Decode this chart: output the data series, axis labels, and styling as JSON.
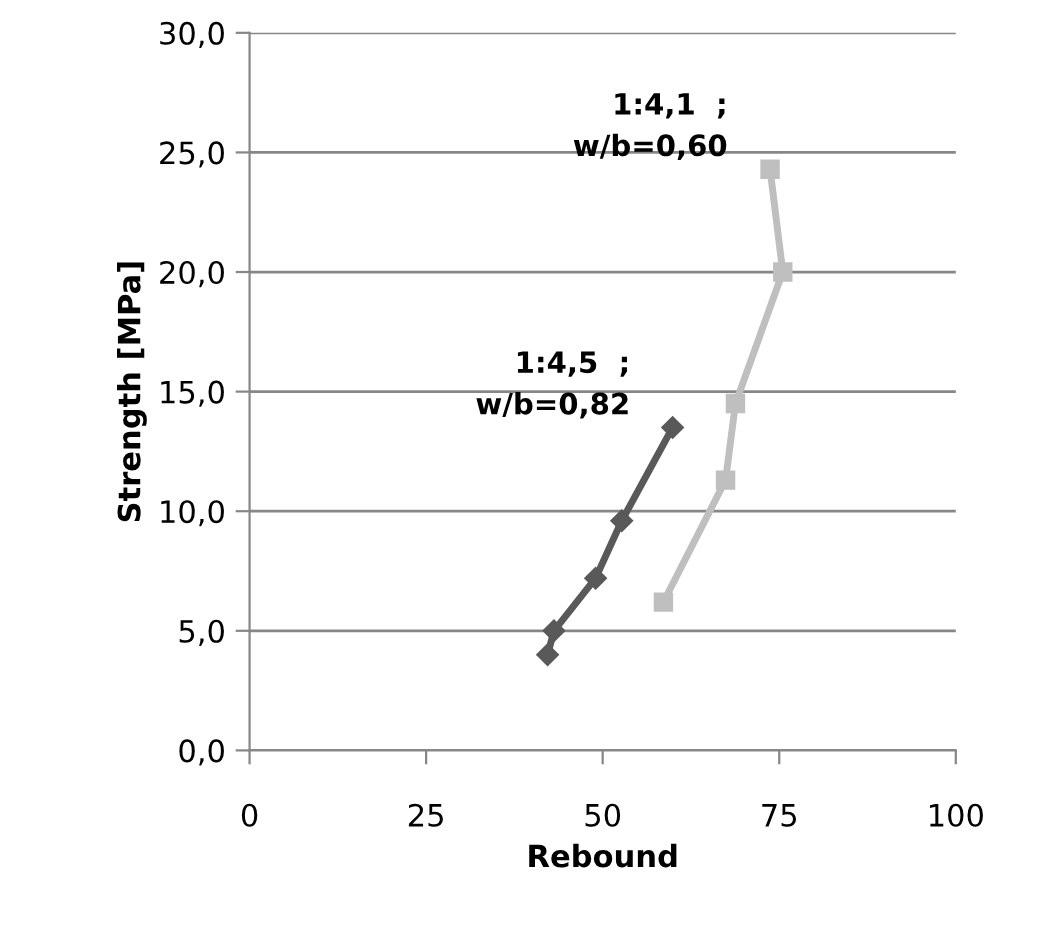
{
  "chart_data": {
    "type": "line",
    "xlabel": "Rebound",
    "ylabel": "Strength [MPa]",
    "xlim": [
      0,
      100
    ],
    "xticks": [
      0,
      25,
      50,
      75,
      100
    ],
    "ylim": [
      0,
      30
    ],
    "yticks": [
      {
        "value": 0,
        "label": "0,0"
      },
      {
        "value": 5,
        "label": "5,0"
      },
      {
        "value": 10,
        "label": "10,0"
      },
      {
        "value": 15,
        "label": "15,0"
      },
      {
        "value": 20,
        "label": "20,0"
      },
      {
        "value": 25,
        "label": "25,0"
      },
      {
        "value": 30,
        "label": "30,0"
      }
    ],
    "grid": "y",
    "legend": false,
    "series": [
      {
        "name": "1:4,5  ;\nw/b=0,82",
        "color": "#595959",
        "marker": "diamond",
        "x": [
          42.2,
          43.1,
          49.0,
          52.7,
          59.9
        ],
        "values": [
          4.0,
          5.0,
          7.2,
          9.6,
          13.5
        ]
      },
      {
        "name": "1:4,1  ;\nw/b=0,60",
        "color": "#bfbfbf",
        "marker": "square",
        "x": [
          58.6,
          67.4,
          68.8,
          75.5,
          73.7
        ],
        "values": [
          6.2,
          11.3,
          14.5,
          20.0,
          24.3
        ]
      }
    ]
  }
}
